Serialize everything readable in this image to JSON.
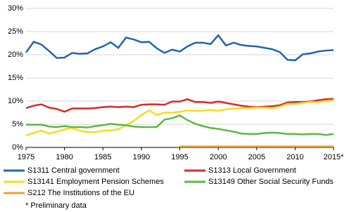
{
  "chart_data": {
    "type": "line",
    "x": [
      1975,
      1976,
      1977,
      1978,
      1979,
      1980,
      1981,
      1982,
      1983,
      1984,
      1985,
      1986,
      1987,
      1988,
      1989,
      1990,
      1991,
      1992,
      1993,
      1994,
      1995,
      1996,
      1997,
      1998,
      1999,
      2000,
      2001,
      2002,
      2003,
      2004,
      2005,
      2006,
      2007,
      2008,
      2009,
      2010,
      2011,
      2012,
      2013,
      2014,
      2015
    ],
    "series": [
      {
        "name": "S1311 Central government",
        "color": "#2166ac",
        "values": [
          20.5,
          22.8,
          22.2,
          20.8,
          19.3,
          19.4,
          20.4,
          20.2,
          20.3,
          21.2,
          21.8,
          22.7,
          21.5,
          23.7,
          23.3,
          22.7,
          22.8,
          21.4,
          20.4,
          21.1,
          20.7,
          21.8,
          22.6,
          22.6,
          22.3,
          24.2,
          22.0,
          22.6,
          22.1,
          21.9,
          21.8,
          21.5,
          21.2,
          20.6,
          18.9,
          18.8,
          20.1,
          20.3,
          20.7,
          20.9,
          21.0
        ]
      },
      {
        "name": "S1313 Local Government",
        "color": "#d62b2b",
        "values": [
          8.5,
          9.0,
          9.3,
          8.6,
          8.3,
          7.7,
          8.4,
          8.4,
          8.4,
          8.5,
          8.7,
          8.8,
          8.7,
          8.8,
          8.7,
          9.2,
          9.3,
          9.3,
          9.2,
          9.9,
          9.9,
          10.4,
          9.8,
          9.8,
          9.6,
          9.9,
          9.6,
          9.3,
          9.0,
          8.8,
          8.7,
          8.8,
          8.9,
          9.1,
          9.7,
          9.8,
          9.8,
          9.9,
          10.2,
          10.4,
          10.5
        ]
      },
      {
        "name": "S13141 Employment Pension Schemes",
        "color": "#f5dc1e",
        "values": [
          2.6,
          3.1,
          3.6,
          3.0,
          3.4,
          3.9,
          4.2,
          3.6,
          3.3,
          3.3,
          3.6,
          3.7,
          3.9,
          4.8,
          5.7,
          7.0,
          8.0,
          7.0,
          7.5,
          7.5,
          7.7,
          8.0,
          7.9,
          7.9,
          8.1,
          7.9,
          8.2,
          8.4,
          8.5,
          8.5,
          8.6,
          8.6,
          8.5,
          8.8,
          9.4,
          9.4,
          9.6,
          9.8,
          9.8,
          10.0,
          10.2
        ]
      },
      {
        "name": "S13149 Other Social Security Funds",
        "color": "#5bb840",
        "values": [
          4.9,
          4.9,
          4.9,
          4.5,
          4.4,
          4.6,
          4.4,
          4.4,
          4.3,
          4.6,
          4.8,
          5.1,
          4.9,
          4.8,
          4.5,
          4.4,
          4.4,
          4.4,
          6.0,
          6.3,
          6.9,
          5.9,
          5.1,
          4.6,
          4.2,
          4.0,
          3.7,
          3.4,
          3.0,
          2.9,
          2.9,
          3.1,
          3.2,
          3.1,
          2.9,
          2.9,
          2.8,
          2.9,
          2.9,
          2.7,
          2.9
        ]
      },
      {
        "name": "S212 The Institutions of the EU",
        "color": "#f0a030",
        "values": [
          null,
          null,
          null,
          null,
          null,
          null,
          null,
          null,
          null,
          null,
          null,
          null,
          null,
          null,
          null,
          null,
          null,
          null,
          null,
          null,
          0.2,
          0.2,
          0.2,
          0.2,
          0.2,
          0.2,
          0.2,
          0.2,
          0.2,
          0.2,
          0.2,
          0.2,
          0.2,
          0.2,
          0.2,
          0.2,
          0.2,
          0.2,
          0.2,
          0.2,
          0.2
        ]
      }
    ],
    "xlim": [
      1975,
      2015
    ],
    "xticks": [
      1975,
      1980,
      1985,
      1990,
      1995,
      2000,
      2005,
      2010,
      {
        "value": 2015,
        "label": "2015*"
      }
    ],
    "ylim": [
      0,
      30
    ],
    "yticks": [
      {
        "value": 0,
        "label": "0%"
      },
      {
        "value": 5,
        "label": "5%"
      },
      {
        "value": 10,
        "label": "10%"
      },
      {
        "value": 15,
        "label": "15%"
      },
      {
        "value": 20,
        "label": "20%"
      },
      {
        "value": 25,
        "label": "25%"
      },
      {
        "value": 30,
        "label": "30%"
      }
    ],
    "grid": true,
    "note": "* Preliminary data"
  }
}
